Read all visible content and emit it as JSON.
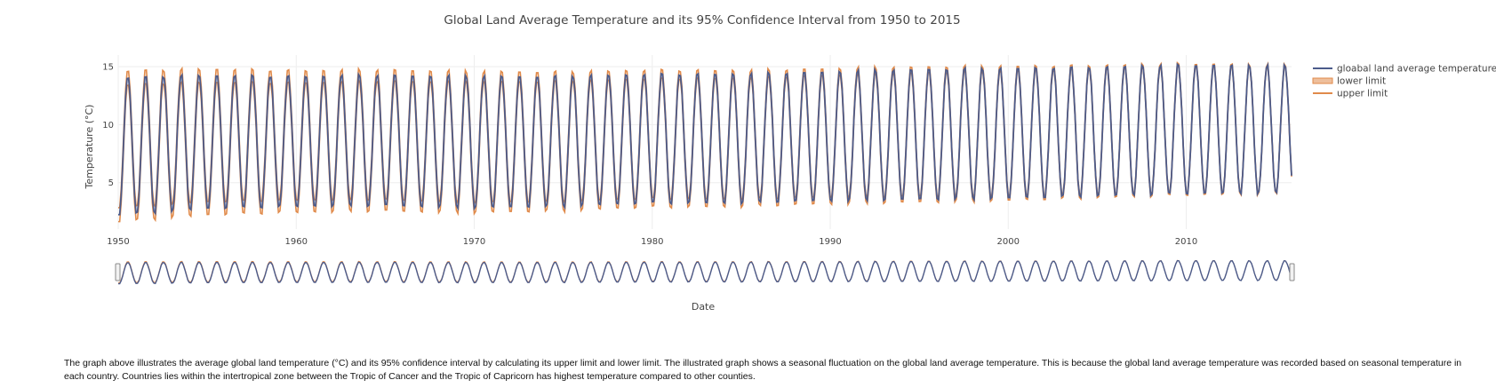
{
  "chart_data": {
    "type": "line",
    "title": "Global Land Average Temperature and its 95% Confidence Interval from 1950 to 2015",
    "xlabel": "Date",
    "ylabel": "Temperature (°C)",
    "x_ticks": [
      "1950",
      "1960",
      "1970",
      "1980",
      "1990",
      "2000",
      "2010"
    ],
    "y_ticks": [
      "5",
      "10",
      "15"
    ],
    "xlim": [
      "1950-01",
      "2015-12"
    ],
    "ylim": [
      1,
      16
    ],
    "grid": true,
    "range_slider": true,
    "legend_position": "top-right",
    "series": [
      {
        "name": "gloabal land average temperature",
        "color": "#4c5b8a"
      },
      {
        "name": "lower limit",
        "color": "#e08a4a"
      },
      {
        "name": "upper limit",
        "color": "#e08a4a"
      }
    ],
    "summary_model": {
      "description_of_values": "monthly seasonal cycle, peak in July, trough in January",
      "july_peak_by_year": {
        "1950": 14.2,
        "1955": 14.4,
        "1960": 14.3,
        "1965": 14.4,
        "1970": 14.3,
        "1975": 14.3,
        "1980": 14.5,
        "1985": 14.5,
        "1990": 14.7,
        "1995": 14.9,
        "2000": 15.0,
        "2005": 15.1,
        "2010": 15.3,
        "2015": 15.2
      },
      "january_trough_by_year": {
        "1950": 2.0,
        "1955": 2.6,
        "1960": 2.8,
        "1965": 2.9,
        "1970": 2.7,
        "1975": 2.8,
        "1980": 3.1,
        "1985": 3.1,
        "1990": 3.3,
        "1995": 3.4,
        "2000": 3.5,
        "2005": 3.7,
        "2010": 3.9,
        "2015": 4.0
      },
      "confidence_half_width_start": 0.6,
      "confidence_half_width_end": 0.08
    }
  },
  "caption": "The graph above illustrates the average global land temperature (°C) and its 95% confidence interval by calculating its upper limit and lower limit. The illustrated graph shows a seasonal fluctuation on the global land average temperature. This is because the global land average temperature was recorded based on seasonal temperature in each country. Countries lies within the intertropical zone between the Tropic of Cancer and the Tropic of Capricorn has highest temperature compared to other counties."
}
